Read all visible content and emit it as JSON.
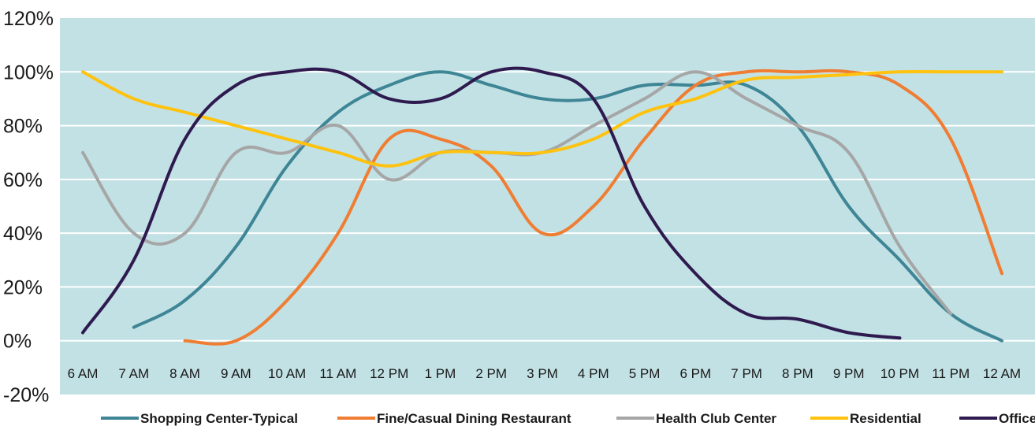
{
  "chart_data": {
    "type": "line",
    "title": "",
    "xlabel": "",
    "ylabel": "",
    "ylim": [
      -20,
      120
    ],
    "y_ticks": [
      120,
      100,
      80,
      60,
      40,
      20,
      0,
      -20
    ],
    "y_tick_labels": [
      "120%",
      "100%",
      "80%",
      "60%",
      "40%",
      "20%",
      "0%",
      "-20%"
    ],
    "categories": [
      "6 AM",
      "7 AM",
      "8 AM",
      "9 AM",
      "10 AM",
      "11 AM",
      "12 PM",
      "1 PM",
      "2 PM",
      "3 PM",
      "4 PM",
      "5 PM",
      "6 PM",
      "7 PM",
      "8 PM",
      "9 PM",
      "10 PM",
      "11 PM",
      "12 AM"
    ],
    "grid": true,
    "plot_background": "#c2e1e4",
    "legend_position": "bottom",
    "series": [
      {
        "name": "Shopping Center-Typical",
        "color": "#3e8595",
        "values": [
          null,
          5,
          15,
          35,
          65,
          85,
          95,
          100,
          95,
          90,
          90,
          95,
          95,
          95,
          80,
          50,
          30,
          10,
          0
        ]
      },
      {
        "name": "Fine/Casual Dining Restaurant",
        "color": "#ef7d32",
        "values": [
          null,
          null,
          0,
          0,
          15,
          40,
          75,
          75,
          65,
          40,
          50,
          75,
          95,
          100,
          100,
          100,
          95,
          75,
          25
        ]
      },
      {
        "name": "Health Club Center",
        "color": "#a6a6a6",
        "values": [
          70,
          40,
          40,
          70,
          70,
          80,
          60,
          70,
          70,
          70,
          80,
          90,
          100,
          90,
          80,
          70,
          35,
          10,
          null
        ]
      },
      {
        "name": "Residential",
        "color": "#ffc20e",
        "values": [
          100,
          90,
          85,
          80,
          75,
          70,
          65,
          70,
          70,
          70,
          75,
          85,
          90,
          97,
          98,
          99,
          100,
          100,
          100
        ]
      },
      {
        "name": "Office",
        "color": "#2e1a4f",
        "values": [
          3,
          30,
          75,
          95,
          100,
          100,
          90,
          90,
          100,
          100,
          90,
          50,
          25,
          10,
          8,
          3,
          1,
          null,
          null
        ]
      }
    ]
  }
}
